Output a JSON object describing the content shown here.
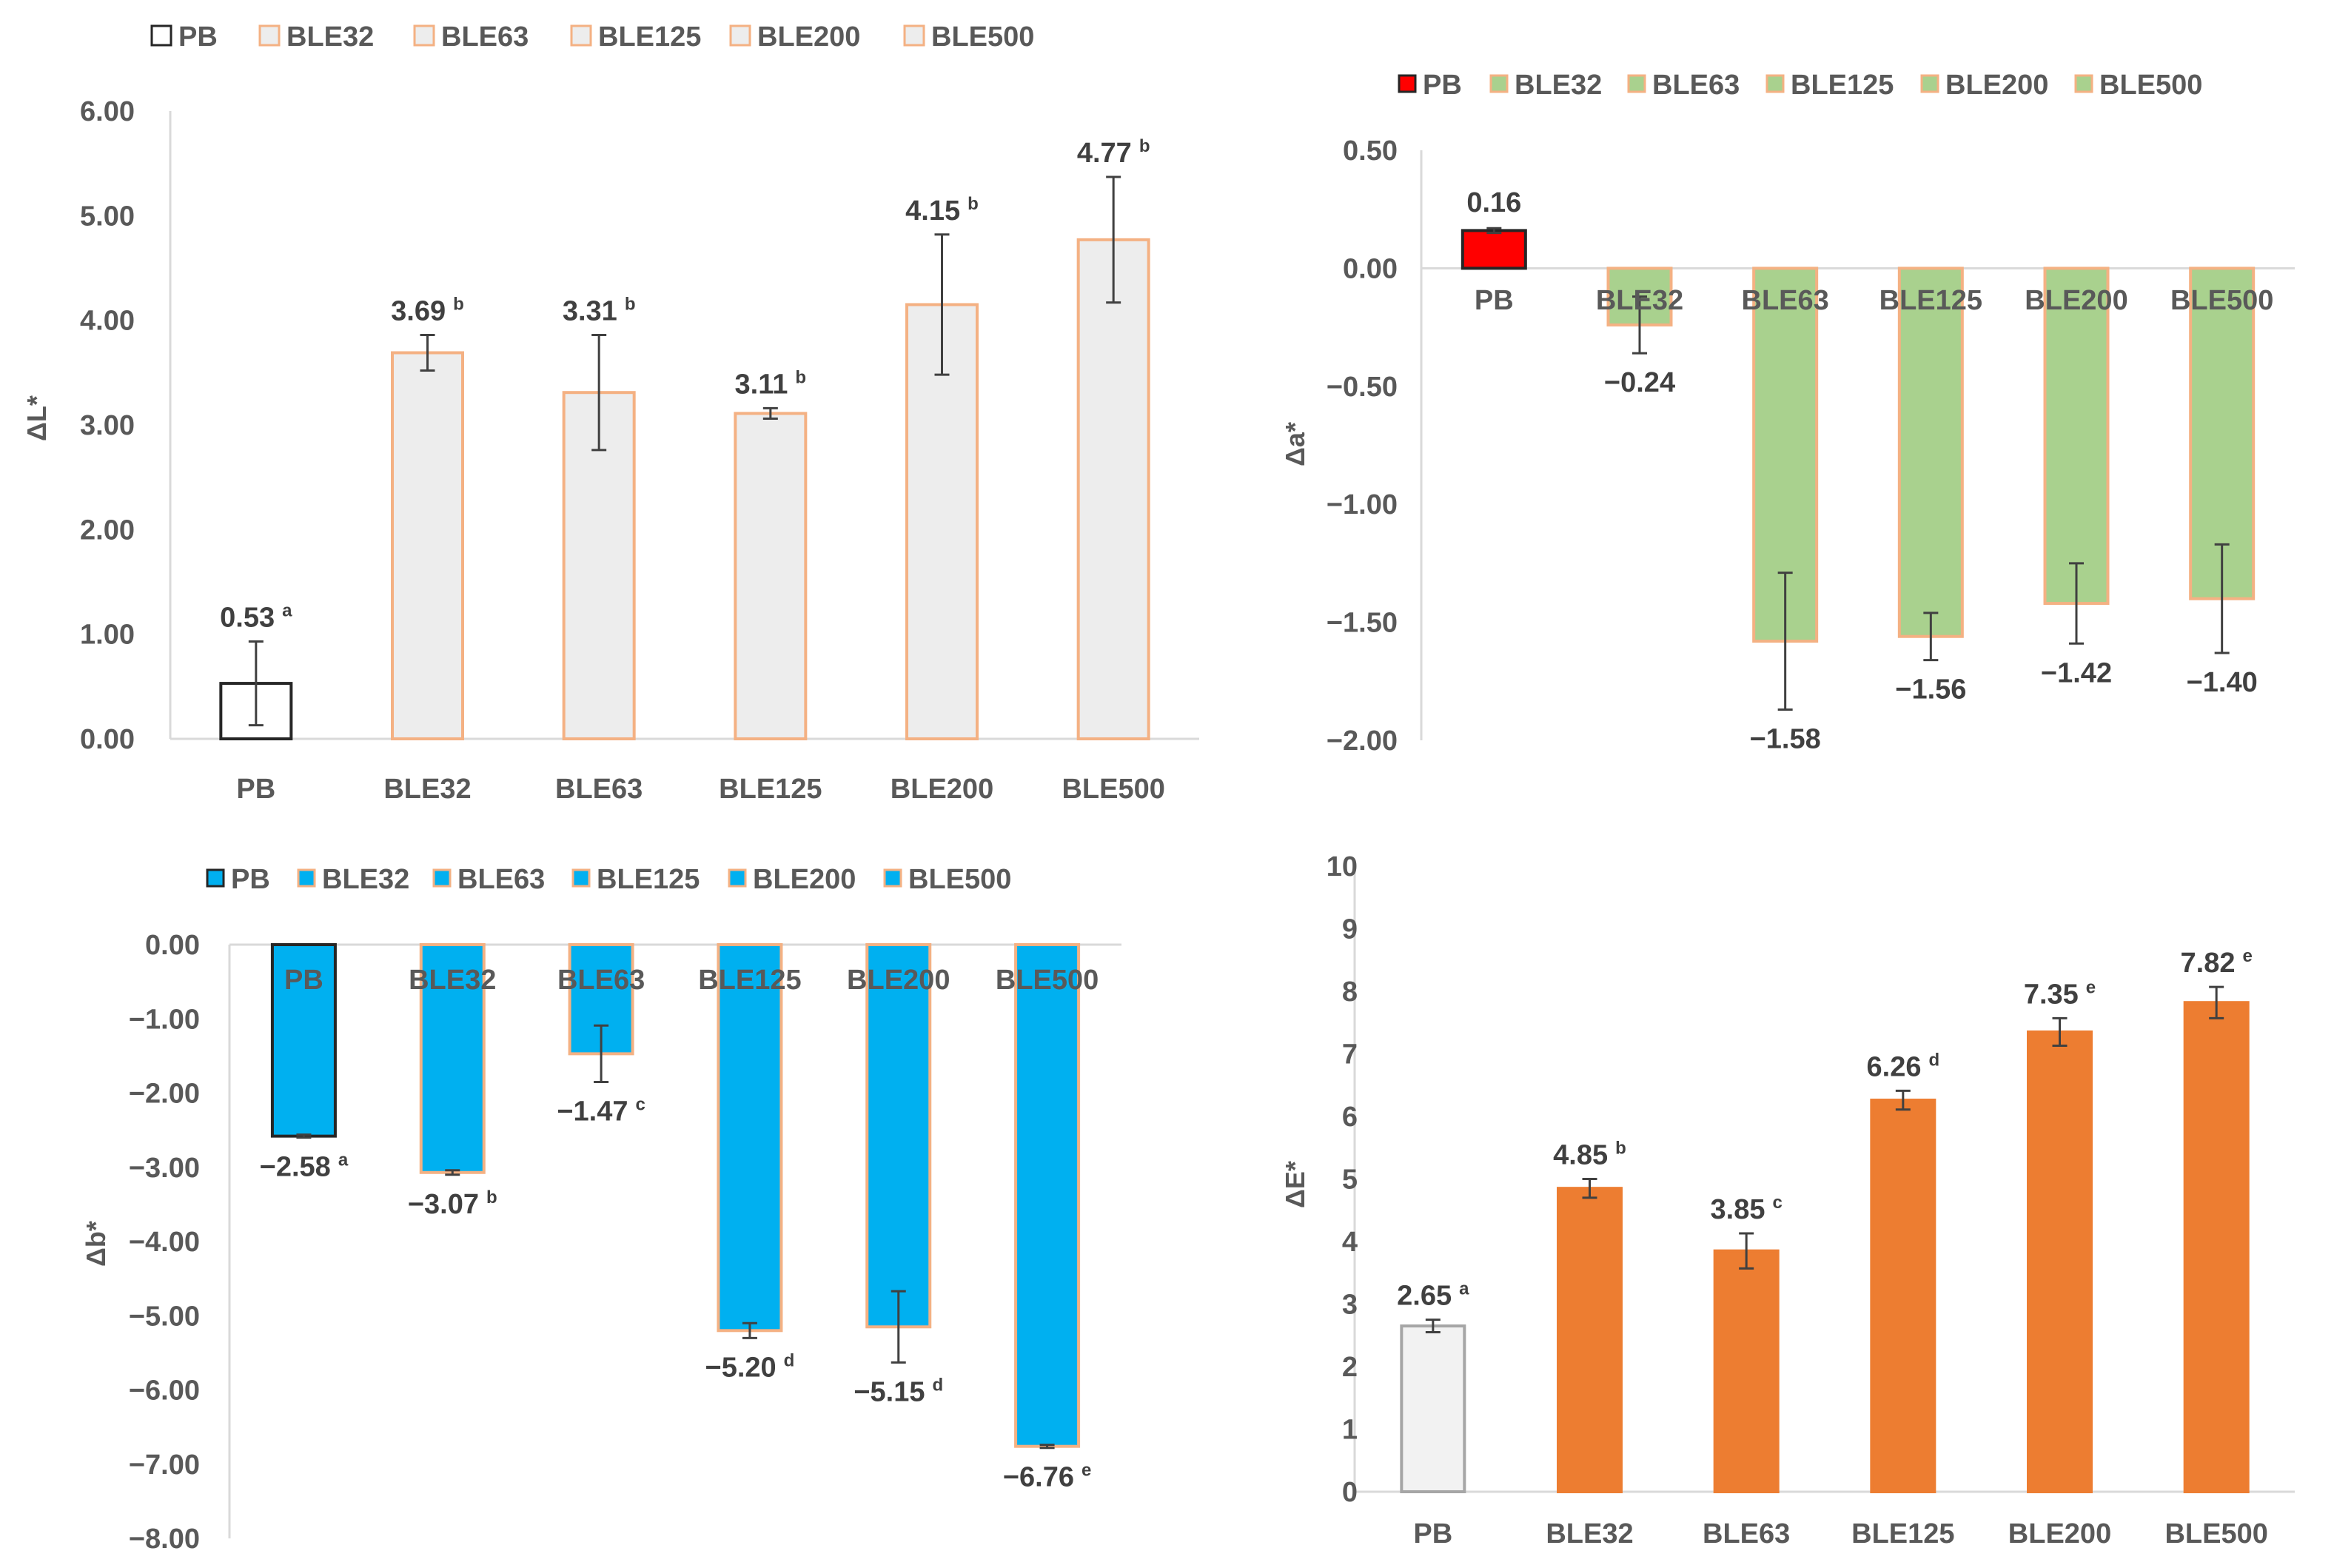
{
  "chart_data": [
    {
      "id": "dL",
      "type": "bar",
      "title": "",
      "xlabel": "",
      "ylabel": "ΔL*",
      "ylim": [
        0,
        6
      ],
      "yticks": [
        "0.00",
        "1.00",
        "2.00",
        "3.00",
        "4.00",
        "5.00",
        "6.00"
      ],
      "legend": [
        "PB",
        "BLE32",
        "BLE63",
        "BLE125",
        "BLE200",
        "BLE500"
      ],
      "legend_position": "top",
      "categories": [
        "PB",
        "BLE32",
        "BLE63",
        "BLE125",
        "BLE200",
        "BLE500"
      ],
      "values": [
        0.53,
        3.69,
        3.31,
        3.11,
        4.15,
        4.77
      ],
      "errors": [
        0.4,
        0.17,
        0.55,
        0.05,
        0.67,
        0.6
      ],
      "value_labels": [
        "0.53",
        "3.69",
        "3.31",
        "3.11",
        "4.15",
        "4.77"
      ],
      "letters": [
        "a",
        "b",
        "b",
        "b",
        "b",
        "b"
      ],
      "colors": {
        "pb_fill": "#ffffff",
        "pb_stroke": "#262626",
        "fill": "#ededed",
        "stroke": "#f4b183"
      }
    },
    {
      "id": "da",
      "type": "bar",
      "title": "",
      "xlabel": "",
      "ylabel": "Δa*",
      "ylim": [
        -2,
        0.5
      ],
      "yticks": [
        "−2.00",
        "−1.50",
        "−1.00",
        "−0.50",
        "0.00",
        "0.50"
      ],
      "legend": [
        "PB",
        "BLE32",
        "BLE63",
        "BLE125",
        "BLE200",
        "BLE500"
      ],
      "legend_position": "top",
      "categories": [
        "PB",
        "BLE32",
        "BLE63",
        "BLE125",
        "BLE200",
        "BLE500"
      ],
      "values": [
        0.16,
        -0.24,
        -1.58,
        -1.56,
        -1.42,
        -1.4
      ],
      "errors": [
        0.01,
        0.12,
        0.29,
        0.1,
        0.17,
        0.23
      ],
      "value_labels": [
        "0.16",
        "−0.24",
        "−1.58",
        "−1.56",
        "−1.42",
        "−1.40"
      ],
      "colors": {
        "pb_fill": "#ff0000",
        "pb_stroke": "#262626",
        "fill": "#a9d18e",
        "stroke": "#f4b183"
      }
    },
    {
      "id": "db",
      "type": "bar",
      "title": "",
      "xlabel": "",
      "ylabel": "Δb*",
      "ylim": [
        -8,
        0
      ],
      "yticks": [
        "−8.00",
        "−7.00",
        "−6.00",
        "−5.00",
        "−4.00",
        "−3.00",
        "−2.00",
        "−1.00",
        "0.00"
      ],
      "legend": [
        "PB",
        "BLE32",
        "BLE63",
        "BLE125",
        "BLE200",
        "BLE500"
      ],
      "legend_position": "top",
      "categories": [
        "PB",
        "BLE32",
        "BLE63",
        "BLE125",
        "BLE200",
        "BLE500"
      ],
      "values": [
        -2.58,
        -3.07,
        -1.47,
        -5.2,
        -5.15,
        -6.76
      ],
      "errors": [
        0.02,
        0.03,
        0.38,
        0.1,
        0.48,
        0.02
      ],
      "value_labels": [
        "−2.58",
        "−3.07",
        "−1.47",
        "−5.20",
        "−5.15",
        "−6.76"
      ],
      "letters": [
        "a",
        "b",
        "c",
        "d",
        "d",
        "e"
      ],
      "colors": {
        "pb_fill": "#00b0f0",
        "pb_stroke": "#262626",
        "fill": "#00b0f0",
        "stroke": "#f4b183"
      }
    },
    {
      "id": "dE",
      "type": "bar",
      "title": "",
      "xlabel": "",
      "ylabel": "ΔE*",
      "ylim": [
        0,
        10
      ],
      "yticks": [
        "0",
        "1",
        "2",
        "3",
        "4",
        "5",
        "6",
        "7",
        "8",
        "9",
        "10"
      ],
      "categories": [
        "PB",
        "BLE32",
        "BLE63",
        "BLE125",
        "BLE200",
        "BLE500"
      ],
      "values": [
        2.65,
        4.85,
        3.85,
        6.26,
        7.35,
        7.82
      ],
      "errors": [
        0.1,
        0.15,
        0.28,
        0.15,
        0.22,
        0.25
      ],
      "value_labels": [
        "2.65",
        "4.85",
        "3.85",
        "6.26",
        "7.35",
        "7.82"
      ],
      "letters": [
        "a",
        "b",
        "c",
        "d",
        "e",
        "e"
      ],
      "colors": {
        "pb_fill": "#f2f2f2",
        "pb_stroke": "#a6a6a6",
        "fill": "#ed7d31",
        "stroke": "#ed7d31"
      }
    }
  ]
}
